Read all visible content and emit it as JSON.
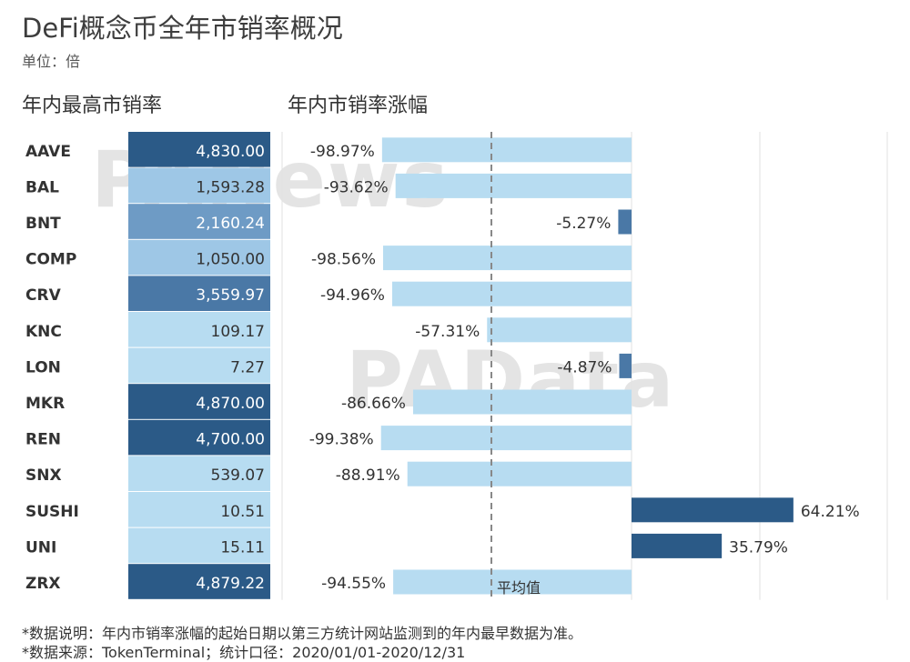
{
  "title": "DeFi概念币全年市销率概况",
  "unit_label": "单位：倍",
  "left_title": "年内最高市销率",
  "right_title": "年内市销率涨幅",
  "avg_label": "平均值",
  "watermarks": [
    "PANews",
    "PAData"
  ],
  "footnotes": [
    "*数据说明：年内市销率涨幅的起始日期以第三方统计网站监测到的年内最早数据为准。",
    "*数据来源：TokenTerminal；统计口径：2020/01/01-2020/12/31"
  ],
  "colors": {
    "dark": "#2b5a87",
    "mid_dark": "#4a78a6",
    "mid": "#6e9bc5",
    "light": "#9ec7e6",
    "pale": "#b7dcf1",
    "bar_pos": "#2b5a87",
    "bar_neg": "#b7dcf1"
  },
  "chart_data": [
    {
      "type": "table",
      "title": "年内最高市销率",
      "categories": [
        "AAVE",
        "BAL",
        "BNT",
        "COMP",
        "CRV",
        "KNC",
        "LON",
        "MKR",
        "REN",
        "SNX",
        "SUSHI",
        "UNI",
        "ZRX"
      ],
      "values": [
        4830.0,
        1593.28,
        2160.24,
        1050.0,
        3559.97,
        109.17,
        7.27,
        4870.0,
        4700.0,
        539.07,
        10.51,
        15.11,
        4879.22
      ],
      "labels": [
        "4,830.00",
        "1,593.28",
        "2,160.24",
        "1,050.00",
        "3,559.97",
        "109.17",
        "7.27",
        "4,870.00",
        "4,700.00",
        "539.07",
        "10.51",
        "15.11",
        "4,879.22"
      ]
    },
    {
      "type": "bar",
      "title": "年内市销率涨幅",
      "orientation": "horizontal",
      "categories": [
        "AAVE",
        "BAL",
        "BNT",
        "COMP",
        "CRV",
        "KNC",
        "LON",
        "MKR",
        "REN",
        "SNX",
        "SUSHI",
        "UNI",
        "ZRX"
      ],
      "values": [
        -98.97,
        -93.62,
        -5.27,
        -98.56,
        -94.96,
        -57.31,
        -4.87,
        -86.66,
        -99.38,
        -88.91,
        64.21,
        35.79,
        -94.55
      ],
      "labels": [
        "-98.97%",
        "-93.62%",
        "-5.27%",
        "-98.56%",
        "-94.96%",
        "-57.31%",
        "-4.87%",
        "-86.66%",
        "-99.38%",
        "-88.91%",
        "64.21%",
        "35.79%",
        "-94.55%"
      ],
      "reference_line": {
        "label": "平均值",
        "value": -55.6
      },
      "xlim": [
        -100,
        100
      ]
    }
  ]
}
